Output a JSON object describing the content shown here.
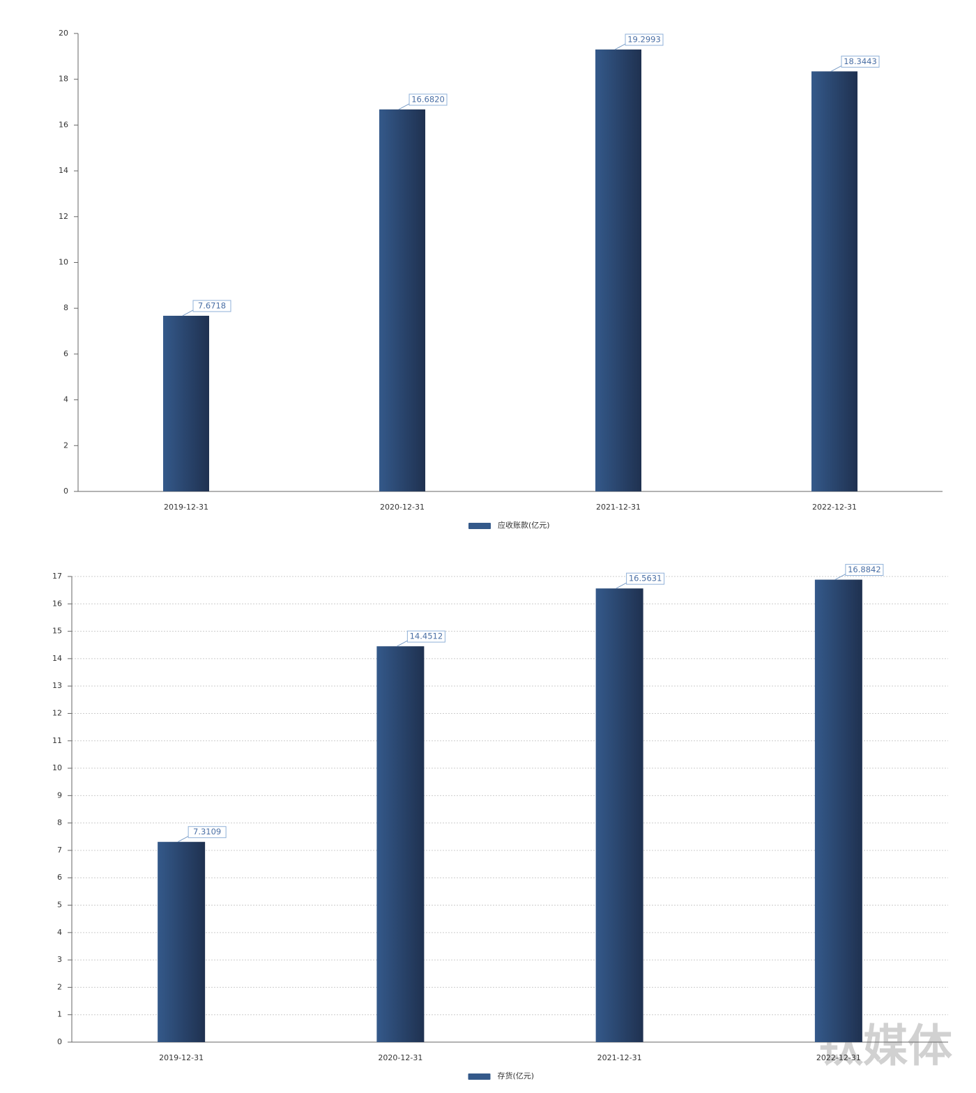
{
  "chart_data": [
    {
      "type": "bar",
      "categories": [
        "2019-12-31",
        "2020-12-31",
        "2021-12-31",
        "2022-12-31"
      ],
      "series": [
        {
          "name": "应收账款(亿元)",
          "color": "#34598a",
          "values": [
            7.6718,
            16.682,
            19.2993,
            18.3443
          ],
          "value_labels": [
            "7.6718",
            "16.6820",
            "19.2993",
            "18.3443"
          ]
        }
      ],
      "ylim": [
        0,
        20
      ],
      "yticks": [
        0,
        2,
        4,
        6,
        8,
        10,
        12,
        14,
        16,
        18,
        20
      ],
      "grid": false,
      "legend": "bottom"
    },
    {
      "type": "bar",
      "categories": [
        "2019-12-31",
        "2020-12-31",
        "2021-12-31",
        "2022-12-31"
      ],
      "series": [
        {
          "name": "存货(亿元)",
          "color": "#34598a",
          "values": [
            7.3109,
            14.4512,
            16.5631,
            16.8842
          ]
        }
      ],
      "ylim": [
        0,
        17
      ],
      "yticks": [
        0,
        1,
        2,
        3,
        4,
        5,
        6,
        7,
        8,
        9,
        10,
        11,
        12,
        13,
        14,
        15,
        16,
        17
      ],
      "grid": true,
      "legend": "bottom"
    }
  ],
  "watermark": "钛媒体"
}
